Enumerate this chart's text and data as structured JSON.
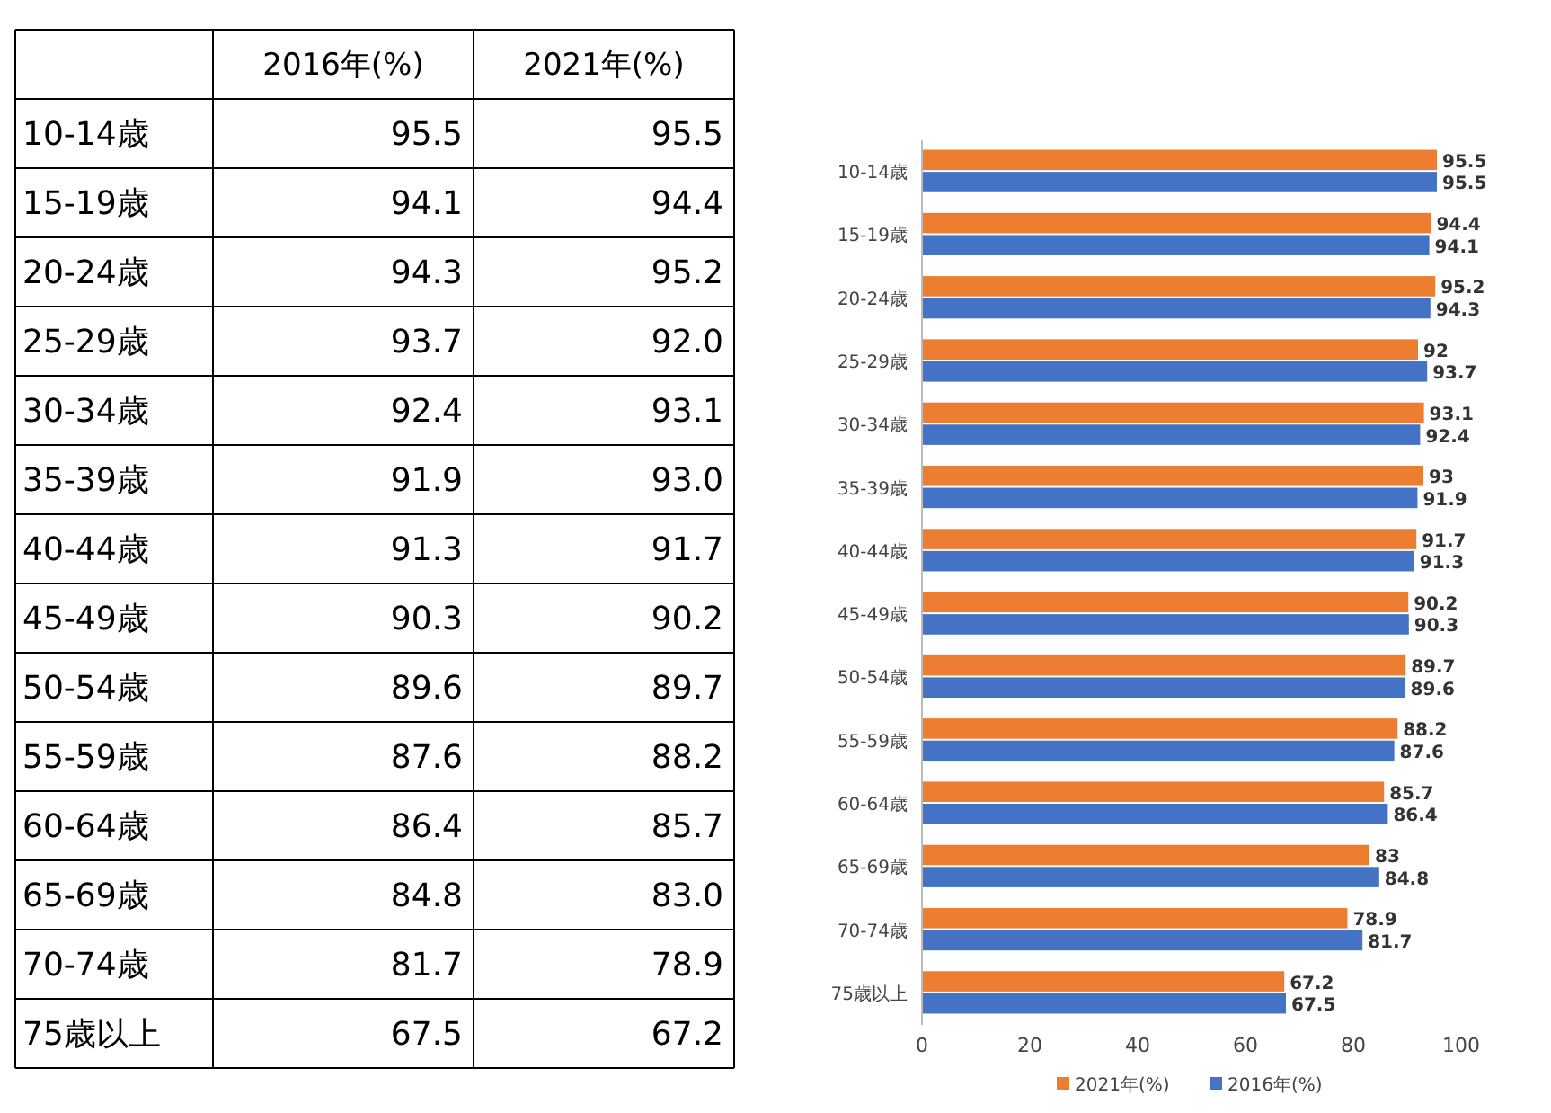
{
  "chart_data": [
    {
      "type": "other",
      "categories": [
        "10-14歳",
        "15-19歳",
        "20-24歳",
        "25-29歳",
        "30-34歳",
        "35-39歳",
        "40-44歳",
        "45-49歳",
        "50-54歳",
        "55-59歳",
        "60-64歳",
        "65-69歳",
        "70-74歳",
        "75歳以上"
      ],
      "series": [
        {
          "name": "2016年(%)",
          "values": [
            95.5,
            94.1,
            94.3,
            93.7,
            92.4,
            91.9,
            91.3,
            90.3,
            89.6,
            87.6,
            86.4,
            84.8,
            81.7,
            67.5
          ],
          "value_labels": [
            "95.5",
            "94.1",
            "94.3",
            "93.7",
            "92.4",
            "91.9",
            "91.3",
            "90.3",
            "89.6",
            "87.6",
            "86.4",
            "84.8",
            "81.7",
            "67.5"
          ]
        },
        {
          "name": "2021年(%)",
          "values": [
            95.5,
            94.4,
            95.2,
            92,
            93.1,
            93,
            91.7,
            90.2,
            89.7,
            88.2,
            85.7,
            83,
            78.9,
            67.2
          ],
          "value_labels": [
            "95.5",
            "94.4",
            "95.2",
            "92.0",
            "93.1",
            "93.0",
            "91.7",
            "90.2",
            "89.7",
            "88.2",
            "85.7",
            "83.0",
            "78.9",
            "67.2"
          ]
        }
      ]
    },
    {
      "type": "bar",
      "orientation": "horizontal",
      "categories": [
        "10-14歳",
        "15-19歳",
        "20-24歳",
        "25-29歳",
        "30-34歳",
        "35-39歳",
        "40-44歳",
        "45-49歳",
        "50-54歳",
        "55-59歳",
        "60-64歳",
        "65-69歳",
        "70-74歳",
        "75歳以上"
      ],
      "series": [
        {
          "name": "2021年(%)",
          "color": "#ed7d31",
          "values": [
            95.5,
            94.4,
            95.2,
            92,
            93.1,
            93,
            91.7,
            90.2,
            89.7,
            88.2,
            85.7,
            83,
            78.9,
            67.2
          ]
        },
        {
          "name": "2016年(%)",
          "color": "#4472c4",
          "values": [
            95.5,
            94.1,
            94.3,
            93.7,
            92.4,
            91.9,
            91.3,
            90.3,
            89.6,
            87.6,
            86.4,
            84.8,
            81.7,
            67.5
          ]
        }
      ],
      "xlim": [
        0,
        100
      ],
      "xticks": [
        0,
        20,
        40,
        60,
        80,
        100
      ],
      "data_labels": true,
      "legend": "bottom"
    }
  ]
}
